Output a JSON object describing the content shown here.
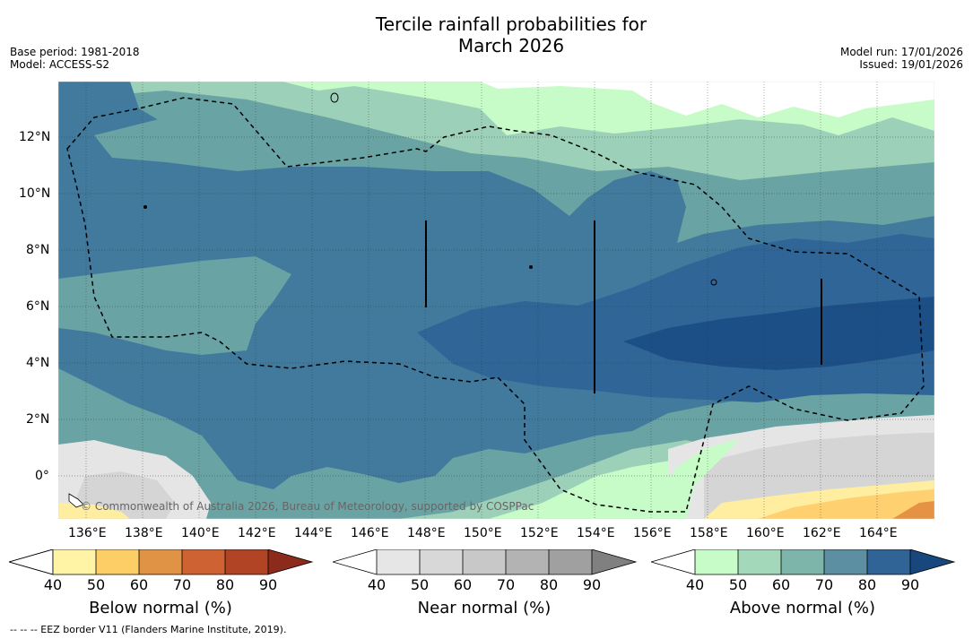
{
  "title": {
    "line1": "Tercile rainfall probabilities for",
    "line2": "March 2026"
  },
  "left_meta": {
    "line1": "Base period: 1981-2018",
    "line2": "Model: ACCESS-S2"
  },
  "right_meta": {
    "line1": "Model run: 17/01/2026",
    "line2": "Issued: 19/01/2026"
  },
  "map": {
    "lat_labels": [
      "12°N",
      "10°N",
      "8°N",
      "6°N",
      "4°N",
      "2°N",
      "0°"
    ],
    "lon_labels": [
      "136°E",
      "138°E",
      "140°E",
      "142°E",
      "144°E",
      "146°E",
      "148°E",
      "150°E",
      "152°E",
      "154°E",
      "156°E",
      "158°E",
      "160°E",
      "162°E",
      "164°E"
    ],
    "credit": "© Commonwealth of Australia 2026, Bureau of Meteorology, supported by COSPPac",
    "colors": {
      "white": "#ffffff",
      "green1": "#c7fcc8",
      "green2": "#9dd0b8",
      "teal": "#6aa3a3",
      "blue": "#417a9c",
      "darkblue": "#2f6597",
      "navy": "#1b4f86",
      "grey1": "#e5e5e5",
      "grey2": "#d5d5d5",
      "yellow": "#ffeda0",
      "orange": "#fed070",
      "darkorange": "#e59244"
    }
  },
  "colorbars": [
    {
      "label": "Below normal (%)",
      "ticks": [
        "40",
        "50",
        "60",
        "70",
        "80",
        "90"
      ],
      "colors": [
        "#fff3a6",
        "#fdce66",
        "#e09345",
        "#cf6233",
        "#b04424",
        "#8c2a1c"
      ]
    },
    {
      "label": "Near normal (%)",
      "ticks": [
        "40",
        "50",
        "60",
        "70",
        "80",
        "90"
      ],
      "colors": [
        "#e6e6e6",
        "#d8d8d8",
        "#c8c8c8",
        "#b3b3b3",
        "#a0a0a0",
        "#808080"
      ]
    },
    {
      "label": "Above normal (%)",
      "ticks": [
        "40",
        "50",
        "60",
        "70",
        "80",
        "90"
      ],
      "colors": [
        "#c7fcc8",
        "#a4d8ba",
        "#7db5aa",
        "#5b8fa1",
        "#306496",
        "#18477e"
      ]
    }
  ],
  "footer": "--  --  -- EEZ border V11 (Flanders Marine Institute, 2019)."
}
